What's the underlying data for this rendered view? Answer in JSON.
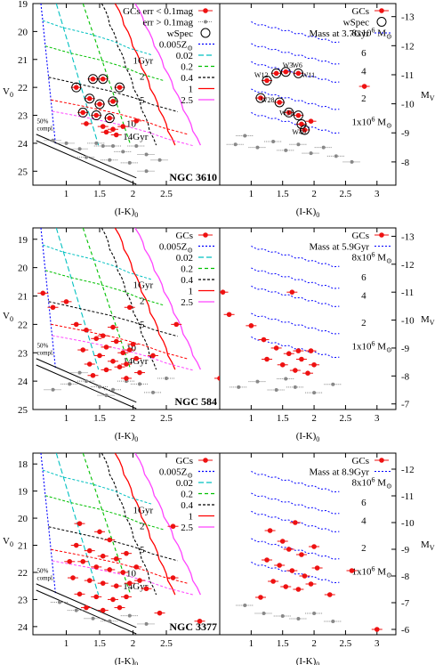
{
  "chart_data": [
    {
      "type": "scatter",
      "galaxy": "NGC 3610",
      "xlim": [
        0.5,
        3.3
      ],
      "left_ylim": [
        19,
        25.5
      ],
      "right_ylim": [
        -13.45,
        -7.2
      ],
      "left_yticks": [
        19,
        20,
        21,
        22,
        23,
        24,
        25
      ],
      "right_yticks": [
        -13,
        -12,
        -11,
        -10,
        -9,
        -8
      ],
      "left_xticks": [
        1,
        1.5,
        2,
        2.5
      ],
      "right_xticks": [
        1,
        1.5,
        2,
        2.5,
        3
      ],
      "xlabel": "(I-K)0",
      "left_ylabel": "V0",
      "right_ylabel": "MV",
      "legend_left": [
        "GCs err < 0.1mag",
        "err > 0.1mag",
        "wSpec",
        "0.005Z⊙",
        "0.02",
        "0.2",
        "0.4",
        "1",
        "2.5"
      ],
      "legend_right": [
        "GCs",
        "wSpec",
        "Mass at 3.7Gyr"
      ],
      "isochrone_labels": [
        "1Gyr",
        "2",
        "5",
        "10",
        "14Gyr"
      ],
      "completeness_label": [
        "50%",
        "compl."
      ],
      "mass_labels": [
        "8x10^6 M⊙",
        "6",
        "4",
        "2",
        "1x10^6 M⊙"
      ],
      "cluster_labels": [
        "W3",
        "W6",
        "W11",
        "W12",
        "W28",
        "W31",
        "W40"
      ],
      "gcs_good": [
        [
          1.15,
          22.0
        ],
        [
          1.4,
          21.7
        ],
        [
          1.55,
          21.7
        ],
        [
          1.8,
          22.0
        ],
        [
          1.35,
          22.4
        ],
        [
          1.5,
          22.6
        ],
        [
          1.7,
          22.5
        ],
        [
          1.25,
          22.9
        ],
        [
          1.45,
          23.0
        ],
        [
          1.65,
          23.1
        ],
        [
          1.3,
          23.3
        ],
        [
          1.55,
          23.4
        ],
        [
          1.7,
          23.5
        ],
        [
          1.85,
          23.4
        ],
        [
          1.6,
          23.6
        ],
        [
          1.75,
          23.7
        ],
        [
          2.05,
          23.2
        ]
      ],
      "gcs_faint": [
        [
          0.8,
          23.9
        ],
        [
          1.0,
          24.0
        ],
        [
          1.2,
          24.2
        ],
        [
          1.45,
          24.0
        ],
        [
          1.55,
          24.1
        ],
        [
          1.7,
          24.1
        ],
        [
          1.85,
          24.3
        ],
        [
          2.05,
          24.1
        ],
        [
          2.2,
          24.4
        ],
        [
          2.4,
          24.6
        ],
        [
          1.65,
          24.6
        ],
        [
          1.3,
          24.5
        ],
        [
          1.95,
          24.7
        ],
        [
          2.2,
          25.0
        ]
      ],
      "wspec": [
        [
          1.15,
          22.0
        ],
        [
          1.4,
          21.7
        ],
        [
          1.55,
          21.7
        ],
        [
          1.8,
          22.0
        ],
        [
          1.35,
          22.4
        ],
        [
          1.5,
          22.6
        ],
        [
          1.7,
          22.5
        ],
        [
          1.25,
          22.9
        ],
        [
          1.45,
          23.0
        ],
        [
          1.65,
          23.1
        ]
      ],
      "right_gcs_good": [
        [
          2.8,
          -10.6
        ],
        [
          1.4,
          -11.05
        ],
        [
          1.55,
          -11.1
        ],
        [
          1.75,
          -11.05
        ],
        [
          1.25,
          -10.8
        ],
        [
          1.15,
          -10.2
        ],
        [
          1.45,
          -10.05
        ],
        [
          1.6,
          -9.7
        ],
        [
          1.75,
          -9.6
        ],
        [
          1.8,
          -9.3
        ],
        [
          1.85,
          -9.1
        ],
        [
          1.95,
          -9.4
        ]
      ],
      "right_gcs_faint": [
        [
          0.75,
          -8.6
        ],
        [
          0.9,
          -8.9
        ],
        [
          1.1,
          -8.5
        ],
        [
          1.35,
          -8.7
        ],
        [
          1.55,
          -8.4
        ],
        [
          1.75,
          -8.6
        ],
        [
          1.95,
          -8.3
        ],
        [
          2.15,
          -8.5
        ],
        [
          2.35,
          -8.2
        ],
        [
          2.6,
          -8.0
        ]
      ],
      "right_wspec": [
        [
          1.4,
          -11.05
        ],
        [
          1.55,
          -11.1
        ],
        [
          1.75,
          -11.05
        ],
        [
          1.25,
          -10.8
        ],
        [
          1.15,
          -10.2
        ],
        [
          1.45,
          -10.05
        ],
        [
          1.6,
          -9.7
        ],
        [
          1.75,
          -9.6
        ],
        [
          1.8,
          -9.3
        ],
        [
          1.85,
          -9.1
        ]
      ]
    },
    {
      "type": "scatter",
      "galaxy": "NGC 584",
      "xlim": [
        0.5,
        3.3
      ],
      "left_ylim": [
        18.6,
        25.0
      ],
      "right_ylim": [
        -13.3,
        -6.8
      ],
      "left_yticks": [
        19,
        20,
        21,
        22,
        23,
        24,
        25
      ],
      "right_yticks": [
        -13,
        -12,
        -11,
        -10,
        -9,
        -8,
        -7
      ],
      "left_xticks": [
        1,
        1.5,
        2,
        2.5
      ],
      "right_xticks": [
        1,
        1.5,
        2,
        2.5,
        3
      ],
      "xlabel": "(I-K)0",
      "left_ylabel": "V0",
      "right_ylabel": "MV",
      "legend_left": [
        "GCs",
        "0.005Z⊙",
        "0.02",
        "0.2",
        "0.4",
        "1",
        "2.5"
      ],
      "legend_right": [
        "GCs",
        "Mass at 5.9Gyr"
      ],
      "isochrone_labels": [
        "1Gyr",
        "2",
        "5",
        "10",
        "14Gyr"
      ],
      "completeness_label": [
        "50%",
        "compl."
      ],
      "mass_labels": [
        "8x10^6 M⊙",
        "6",
        "4",
        "2",
        "1x10^6 M⊙"
      ],
      "gcs_good": [
        [
          0.65,
          20.9
        ],
        [
          0.8,
          21.4
        ],
        [
          1.0,
          21.2
        ],
        [
          1.15,
          22.0
        ],
        [
          1.3,
          22.2
        ],
        [
          1.45,
          22.5
        ],
        [
          1.6,
          22.8
        ],
        [
          1.75,
          22.6
        ],
        [
          1.85,
          23.0
        ],
        [
          1.95,
          22.9
        ],
        [
          1.25,
          22.9
        ],
        [
          1.5,
          23.1
        ],
        [
          1.7,
          23.3
        ],
        [
          1.9,
          23.4
        ],
        [
          2.05,
          23.2
        ],
        [
          1.35,
          23.4
        ],
        [
          1.6,
          23.6
        ],
        [
          1.8,
          23.5
        ],
        [
          2.1,
          23.7
        ],
        [
          2.3,
          23.1
        ],
        [
          1.4,
          23.8
        ],
        [
          1.9,
          23.9
        ],
        [
          2.65,
          22.0
        ],
        [
          3.3,
          23.9
        ],
        [
          1.55,
          22.4
        ],
        [
          2.0,
          22.7
        ],
        [
          1.7,
          22.1
        ],
        [
          1.95,
          21.4
        ]
      ],
      "gcs_faint": [
        [
          0.8,
          24.3
        ],
        [
          1.05,
          24.1
        ],
        [
          1.3,
          24.0
        ],
        [
          1.5,
          24.2
        ],
        [
          1.7,
          24.3
        ],
        [
          1.9,
          24.0
        ],
        [
          2.1,
          24.1
        ],
        [
          2.3,
          24.4
        ],
        [
          2.5,
          23.9
        ],
        [
          1.2,
          23.7
        ],
        [
          1.6,
          24.5
        ]
      ],
      "right_gcs_good": [
        [
          0.55,
          -11.0
        ],
        [
          0.65,
          -10.2
        ],
        [
          1.0,
          -9.8
        ],
        [
          1.2,
          -9.3
        ],
        [
          1.4,
          -9.0
        ],
        [
          1.6,
          -8.8
        ],
        [
          1.8,
          -8.6
        ],
        [
          1.95,
          -8.9
        ],
        [
          1.5,
          -8.4
        ],
        [
          1.7,
          -8.2
        ],
        [
          1.9,
          -8.1
        ],
        [
          1.65,
          -11.0
        ],
        [
          2.0,
          -8.4
        ],
        [
          1.25,
          -8.6
        ],
        [
          1.75,
          -8.9
        ]
      ],
      "right_gcs_faint": [
        [
          0.8,
          -7.6
        ],
        [
          1.1,
          -7.8
        ],
        [
          1.4,
          -7.5
        ],
        [
          1.7,
          -7.6
        ],
        [
          2.0,
          -7.4
        ],
        [
          2.3,
          -7.7
        ],
        [
          1.55,
          -7.9
        ]
      ]
    },
    {
      "type": "scatter",
      "galaxy": "NGC 3377",
      "xlim": [
        0.5,
        3.3
      ],
      "left_ylim": [
        17.6,
        24.3
      ],
      "right_ylim": [
        -12.6,
        -5.8
      ],
      "left_yticks": [
        18,
        19,
        20,
        21,
        22,
        23,
        24
      ],
      "right_yticks": [
        -12,
        -11,
        -10,
        -9,
        -8,
        -7,
        -6
      ],
      "left_xticks": [
        1,
        1.5,
        2,
        2.5
      ],
      "right_xticks": [
        1,
        1.5,
        2,
        2.5,
        3
      ],
      "xlabel": "(I-K)0",
      "left_ylabel": "V0",
      "right_ylabel": "MV",
      "legend_left": [
        "GCs",
        "0.005Z⊙",
        "0.02",
        "0.2",
        "0.4",
        "1",
        "2.5"
      ],
      "legend_right": [
        "GCs",
        "Mass at 8.9Gyr"
      ],
      "isochrone_labels": [
        "1Gyr",
        "2",
        "5",
        "10",
        "14Gyr"
      ],
      "completeness_label": [
        "50%",
        "compl."
      ],
      "mass_labels": [
        "8x10^6 M⊙",
        "6",
        "4",
        "2",
        "1x10^6 M⊙"
      ],
      "gcs_good": [
        [
          1.2,
          20.2
        ],
        [
          1.5,
          20.5
        ],
        [
          1.65,
          20.8
        ],
        [
          2.6,
          20.3
        ],
        [
          1.15,
          21.0
        ],
        [
          1.35,
          21.2
        ],
        [
          1.55,
          21.4
        ],
        [
          1.75,
          21.5
        ],
        [
          1.9,
          21.3
        ],
        [
          1.25,
          21.6
        ],
        [
          1.45,
          21.8
        ],
        [
          1.65,
          21.9
        ],
        [
          1.85,
          22.0
        ],
        [
          2.05,
          21.8
        ],
        [
          1.1,
          22.2
        ],
        [
          1.35,
          22.3
        ],
        [
          1.55,
          22.4
        ],
        [
          1.75,
          22.5
        ],
        [
          1.95,
          22.4
        ],
        [
          1.2,
          22.8
        ],
        [
          1.45,
          22.9
        ],
        [
          1.7,
          23.0
        ],
        [
          1.9,
          22.9
        ],
        [
          2.2,
          22.6
        ],
        [
          1.3,
          23.3
        ],
        [
          1.55,
          23.4
        ],
        [
          1.8,
          23.3
        ],
        [
          2.4,
          23.5
        ],
        [
          2.6,
          22.2
        ],
        [
          3.0,
          23.8
        ],
        [
          1.05,
          21.6
        ],
        [
          2.1,
          22.3
        ]
      ],
      "gcs_faint": [
        [
          0.9,
          23.1
        ],
        [
          1.15,
          23.4
        ],
        [
          1.4,
          23.7
        ],
        [
          1.65,
          23.8
        ],
        [
          1.95,
          23.6
        ],
        [
          2.2,
          23.9
        ]
      ],
      "right_gcs_good": [
        [
          1.7,
          -10.0
        ],
        [
          1.3,
          -9.7
        ],
        [
          1.5,
          -9.3
        ],
        [
          1.6,
          -9.0
        ],
        [
          1.8,
          -8.8
        ],
        [
          2.0,
          -9.1
        ],
        [
          1.25,
          -8.6
        ],
        [
          1.45,
          -8.4
        ],
        [
          1.65,
          -8.2
        ],
        [
          1.85,
          -8.0
        ],
        [
          2.05,
          -8.3
        ],
        [
          1.35,
          -7.8
        ],
        [
          1.55,
          -7.6
        ],
        [
          1.75,
          -7.5
        ],
        [
          1.95,
          -7.7
        ],
        [
          2.25,
          -7.3
        ],
        [
          2.6,
          -8.2
        ],
        [
          3.0,
          -6.0
        ],
        [
          1.15,
          -7.2
        ]
      ],
      "right_gcs_faint": [
        [
          0.9,
          -6.9
        ],
        [
          1.2,
          -6.6
        ],
        [
          1.5,
          -6.5
        ],
        [
          1.75,
          -6.4
        ],
        [
          2.0,
          -6.6
        ],
        [
          2.3,
          -6.3
        ]
      ]
    }
  ]
}
